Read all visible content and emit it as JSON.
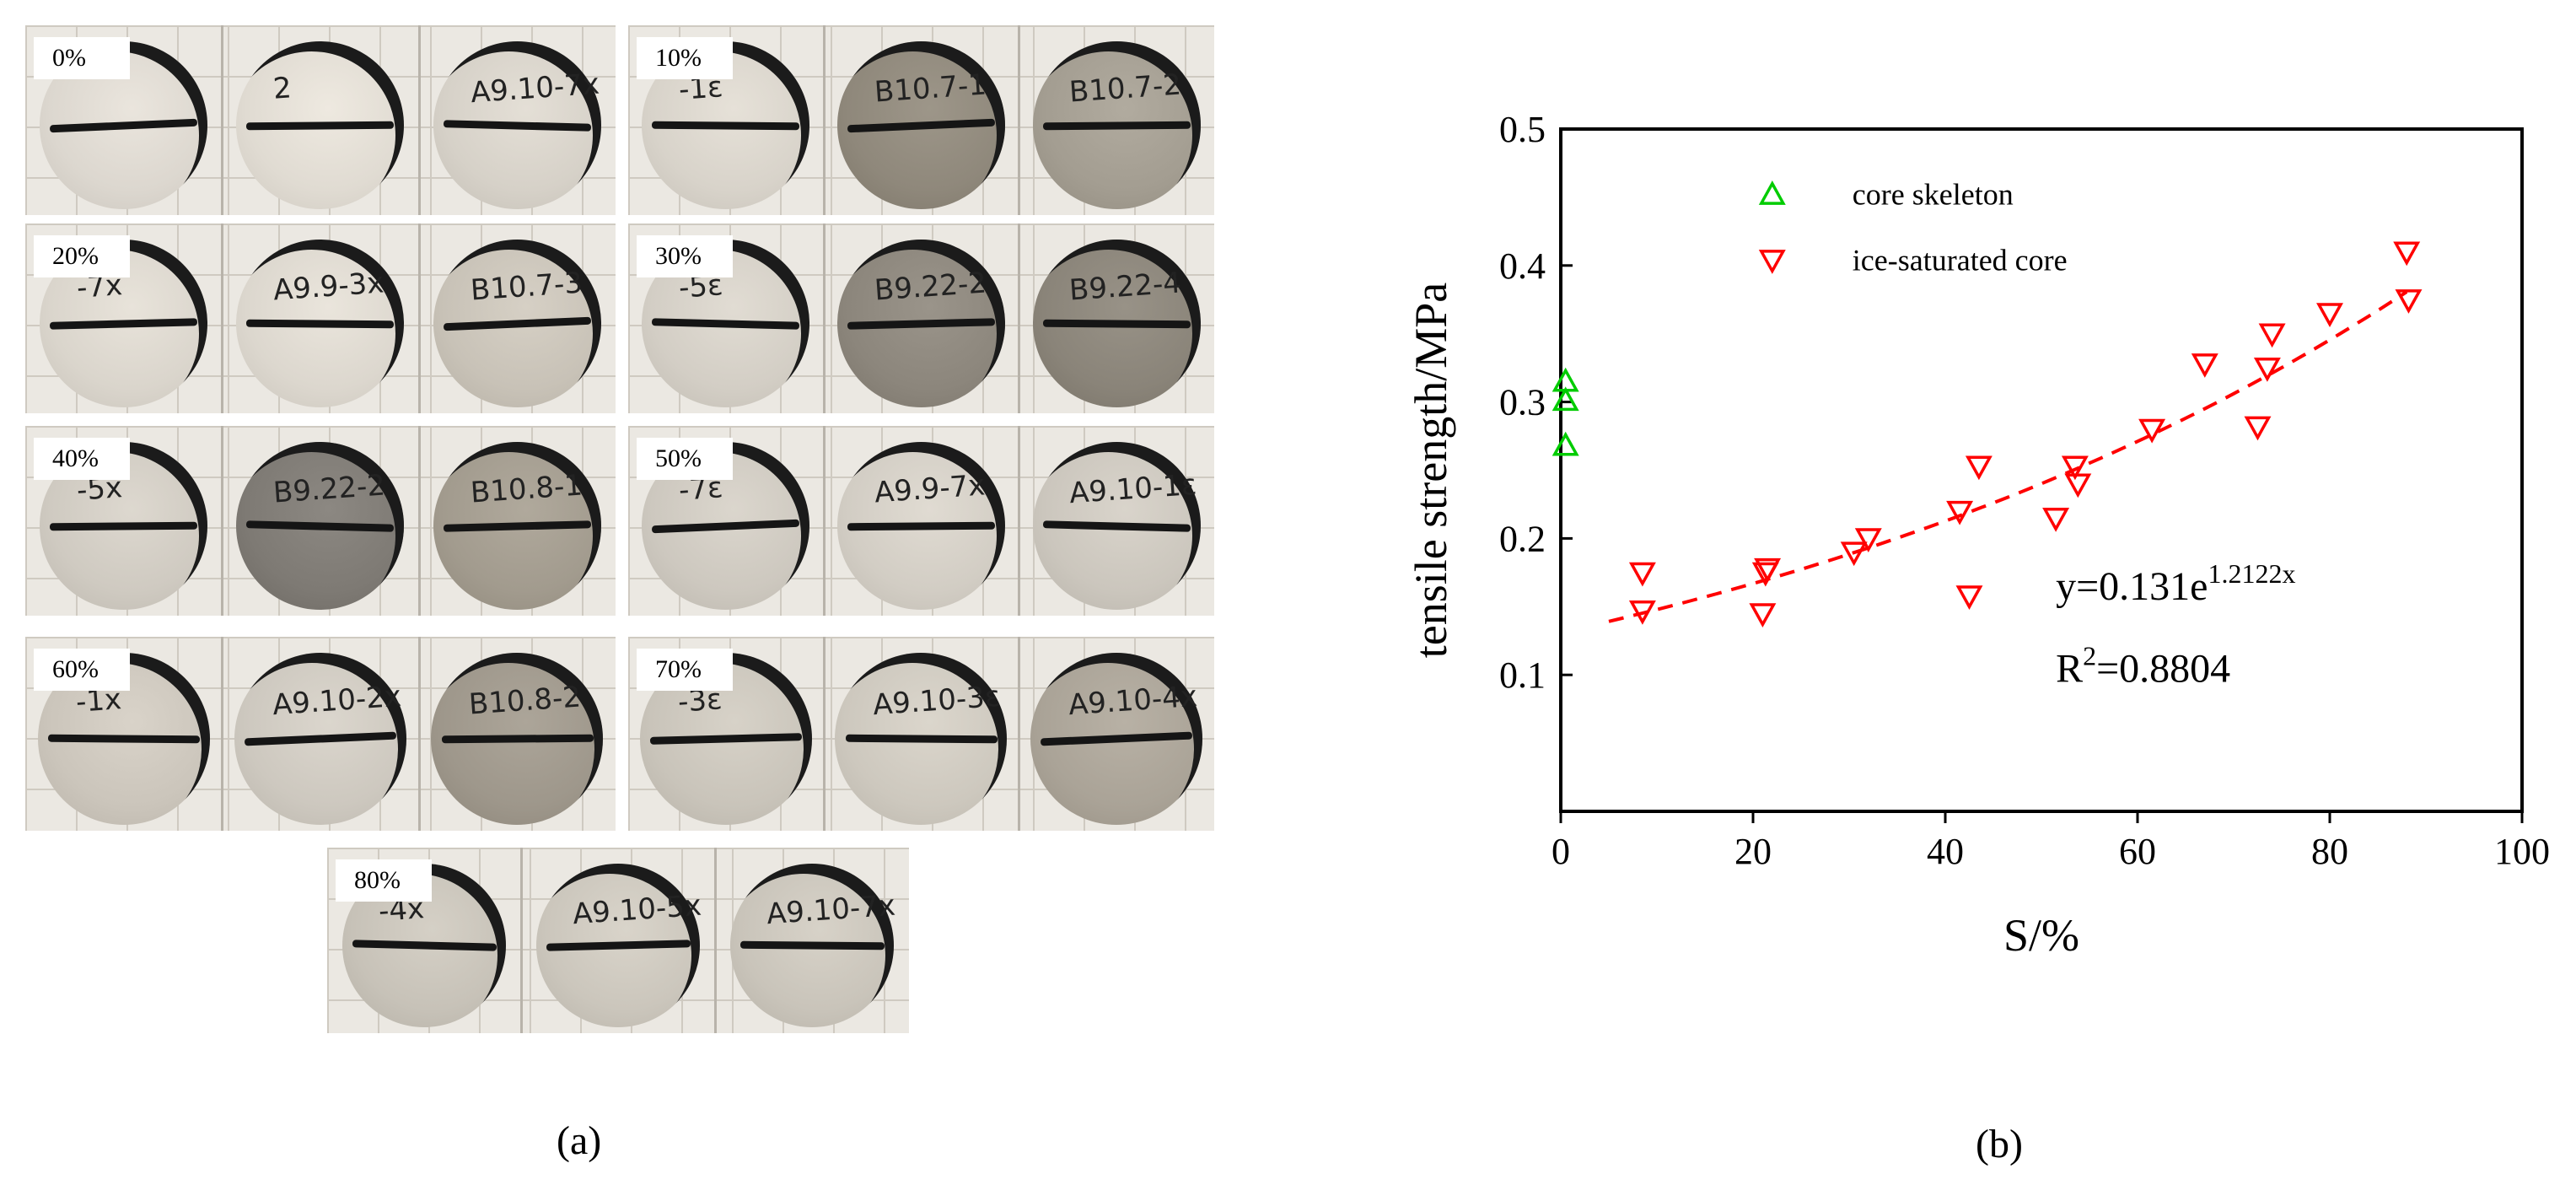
{
  "figure": {
    "panel_a": {
      "caption": "(a)",
      "groups": [
        {
          "label": "0%",
          "tiles": [
            {
              "text": "",
              "shade": "#dcd7cf"
            },
            {
              "text": "2",
              "shade": "#e0dbd2"
            },
            {
              "text": "A9.10-7x",
              "shade": "#d6d1c8"
            }
          ]
        },
        {
          "label": "10%",
          "tiles": [
            {
              "text": "-1ε",
              "shade": "#d8d3ca"
            },
            {
              "text": "B10.7-1",
              "shade": "#8f887b"
            },
            {
              "text": "B10.7-2",
              "shade": "#a39d91"
            }
          ]
        },
        {
          "label": "20%",
          "tiles": [
            {
              "text": "-7x",
              "shade": "#dad5cc"
            },
            {
              "text": "A9.9-3x",
              "shade": "#dcd7ce"
            },
            {
              "text": "B10.7-3",
              "shade": "#c8c2b7"
            }
          ]
        },
        {
          "label": "30%",
          "tiles": [
            {
              "text": "-5ε",
              "shade": "#d3cec5"
            },
            {
              "text": "B9.22-2",
              "shade": "#8c867c"
            },
            {
              "text": "B9.22-4",
              "shade": "#8a8479"
            }
          ]
        },
        {
          "label": "40%",
          "tiles": [
            {
              "text": "-5x",
              "shade": "#cfcac1"
            },
            {
              "text": "B9.22-2",
              "shade": "#7e7a74"
            },
            {
              "text": "B10.8-1",
              "shade": "#a29b8e"
            }
          ]
        },
        {
          "label": "50%",
          "tiles": [
            {
              "text": "-7ε",
              "shade": "#cdc8bf"
            },
            {
              "text": "A9.9-7x",
              "shade": "#d2cdc4"
            },
            {
              "text": "A9.10-1ε",
              "shade": "#cbc6bd"
            }
          ]
        },
        {
          "label": "60%",
          "tiles": [
            {
              "text": "-1x",
              "shade": "#cbc5bb"
            },
            {
              "text": "A9.10-2x",
              "shade": "#cdc8bf"
            },
            {
              "text": "B10.8-2",
              "shade": "#9e978b"
            }
          ]
        },
        {
          "label": "70%",
          "tiles": [
            {
              "text": "-3ε",
              "shade": "#c9c4ba"
            },
            {
              "text": "A9.10-3ε",
              "shade": "#cdc8be"
            },
            {
              "text": "A9.10-4x",
              "shade": "#aaa397"
            }
          ]
        },
        {
          "label": "80%",
          "tiles": [
            {
              "text": "-4x",
              "shade": "#c7c2b8"
            },
            {
              "text": "A9.10-5x",
              "shade": "#cbc6bc"
            },
            {
              "text": "A9.10-7x",
              "shade": "#c9c4ba"
            }
          ]
        }
      ]
    },
    "panel_b": {
      "caption": "(b)",
      "equation_text": "y=0.131e",
      "equation_exponent": "1.2122x",
      "r2_prefix": "R",
      "r2_sup": "2",
      "r2_value": "=0.8804"
    }
  },
  "chart_data": {
    "type": "scatter",
    "xlabel": "S/%",
    "ylabel": "tensile strength/MPa",
    "xlim": [
      0,
      100
    ],
    "ylim": [
      0,
      0.5
    ],
    "xticks": [
      "0",
      "20",
      "40",
      "60",
      "80",
      "100"
    ],
    "yticks": [
      "0.1",
      "0.2",
      "0.3",
      "0.4",
      "0.5"
    ],
    "legend_position": "top",
    "grid": false,
    "series": [
      {
        "name": "core skeleton",
        "marker": "triangle-up",
        "color": "#00cc00",
        "x": [
          0.5,
          0.5,
          0.5
        ],
        "y": [
          0.315,
          0.301,
          0.268
        ]
      },
      {
        "name": "ice-saturated core",
        "marker": "triangle-down",
        "color": "#ff0000",
        "x": [
          8.5,
          8.5,
          21,
          21.5,
          21.3,
          30.5,
          32,
          41.5,
          42.5,
          43.5,
          51.5,
          53.5,
          53.8,
          61.5,
          67,
          72.5,
          73.5,
          74,
          80,
          88,
          88.2
        ],
        "y": [
          0.175,
          0.147,
          0.145,
          0.178,
          0.175,
          0.19,
          0.2,
          0.22,
          0.158,
          0.253,
          0.215,
          0.253,
          0.24,
          0.28,
          0.328,
          0.282,
          0.325,
          0.35,
          0.365,
          0.41,
          0.375
        ]
      }
    ],
    "fit": {
      "type": "exponential",
      "a": 0.131,
      "b": 1.2122,
      "x_unit": "fraction",
      "x_range": [
        5,
        88
      ],
      "color": "#ff0000",
      "style": "dashed"
    }
  }
}
